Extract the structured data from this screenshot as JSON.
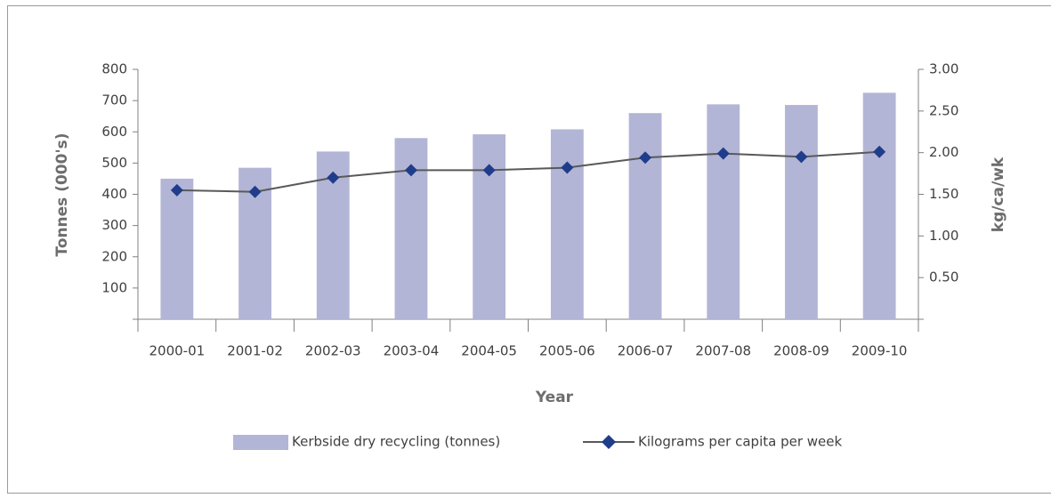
{
  "chart_data": {
    "type": "bar-line",
    "x_label": "Year",
    "y_label": "Tonnes (000's)",
    "y2_label": "kg/ca/wk",
    "categories": [
      "2000-01",
      "2001-02",
      "2002-03",
      "2003-04",
      "2004-05",
      "2005-06",
      "2006-07",
      "2007-08",
      "2008-09",
      "2009-10"
    ],
    "series": [
      {
        "name": "Kerbside dry recycling (tonnes)",
        "type": "bar",
        "color": "#b3b5d6",
        "values": [
          450,
          485,
          537,
          580,
          592,
          608,
          660,
          688,
          686,
          725
        ]
      },
      {
        "name": "Kilograms per capita per week",
        "type": "line",
        "axis": "y2",
        "color": "#595959",
        "marker_color": "#1f3d8a",
        "values": [
          1.55,
          1.53,
          1.7,
          1.79,
          1.79,
          1.82,
          1.94,
          1.99,
          1.95,
          2.01
        ]
      }
    ],
    "ylim": [
      0,
      800
    ],
    "yticks": [
      100,
      200,
      300,
      400,
      500,
      600,
      700,
      800
    ],
    "y2lim": [
      0,
      3
    ],
    "y2ticks": [
      {
        "value": 0.5,
        "label": "0.50"
      },
      {
        "value": 1,
        "label": "1.00"
      },
      {
        "value": 1.5,
        "label": "1.50"
      },
      {
        "value": 2,
        "label": "2.00"
      },
      {
        "value": 2.5,
        "label": "2.50"
      },
      {
        "value": 3,
        "label": "3.00"
      }
    ],
    "legend": "bottom",
    "grid": false
  }
}
